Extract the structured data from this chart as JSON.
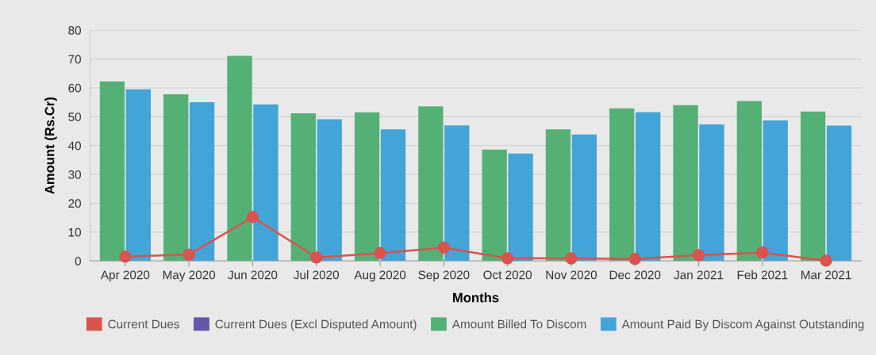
{
  "chart_data": {
    "type": "bar",
    "xlabel": "Months",
    "ylabel": "Amount (Rs.Cr)",
    "categories": [
      "Apr 2020",
      "May 2020",
      "Jun 2020",
      "Jul 2020",
      "Aug 2020",
      "Sep 2020",
      "Oct 2020",
      "Nov 2020",
      "Dec 2020",
      "Jan 2021",
      "Feb 2021",
      "Mar 2021"
    ],
    "series": [
      {
        "name": "Current Dues",
        "type": "line",
        "marker": "circle",
        "color": "#d9534f",
        "values": [
          1.5,
          2.2,
          15.2,
          1.2,
          2.7,
          4.6,
          0.9,
          0.9,
          0.7,
          2.0,
          2.9,
          0.1
        ]
      },
      {
        "name": "Current Dues (Excl Disputed Amount)",
        "type": "line",
        "marker": "circle",
        "color": "#6457a6",
        "values": [
          null,
          null,
          null,
          null,
          null,
          null,
          null,
          null,
          null,
          null,
          null,
          null
        ]
      },
      {
        "name": "Amount Billed To Discom",
        "color": "#55b076",
        "values": [
          62.2,
          57.8,
          71.1,
          51.2,
          51.5,
          53.6,
          38.6,
          45.6,
          52.9,
          54.0,
          55.4,
          51.8
        ]
      },
      {
        "name": "Amount Paid By Discom Against Outstanding",
        "color": "#43a4d7",
        "values": [
          59.5,
          55.0,
          54.3,
          49.1,
          45.6,
          47.0,
          37.2,
          43.8,
          51.6,
          47.3,
          48.7,
          46.9
        ]
      }
    ],
    "ylim": [
      0,
      80
    ],
    "yticks": [
      0,
      10,
      20,
      30,
      40,
      50,
      60,
      70,
      80
    ],
    "grid": "y",
    "legend": "bottom"
  }
}
